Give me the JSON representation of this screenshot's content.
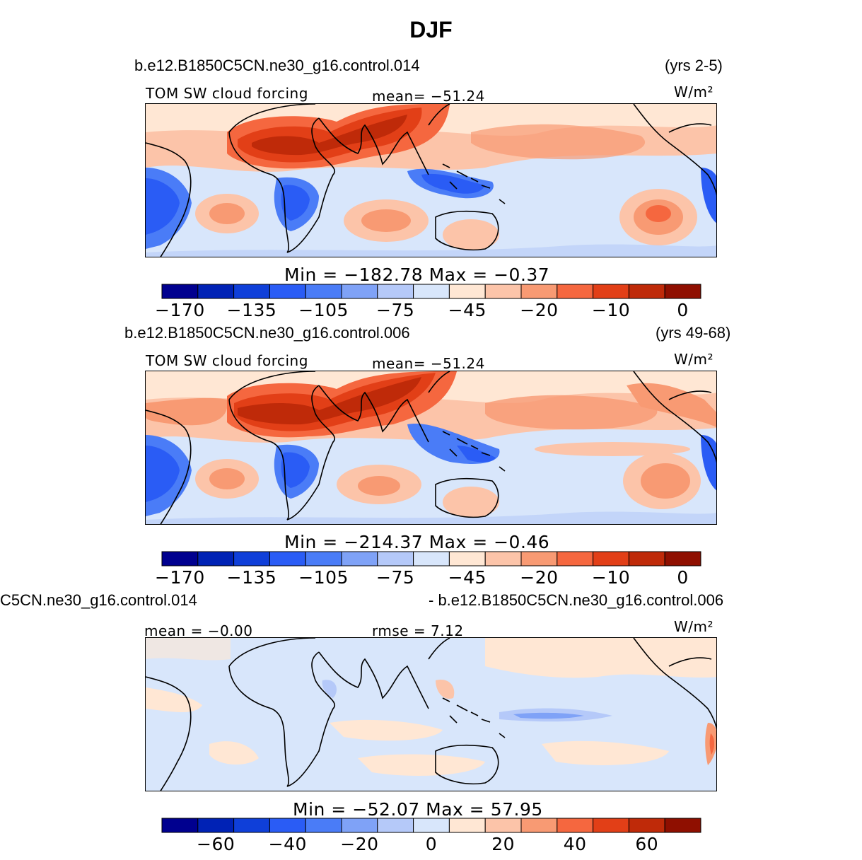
{
  "figure": {
    "title": "DJF"
  },
  "panels": [
    {
      "case_name": "b.e12.B1850C5CN.ne30_g16.control.014",
      "years": "(yrs 2-5)",
      "variable": "TOM  SW  cloud  forcing",
      "stat_text": "mean=  −51.24",
      "units": "W/m²",
      "minmax": "Min  =  −182.78  Max  =    −0.37",
      "colorbar_ticks": [
        "−170",
        "−135",
        "−105",
        "−75",
        "−45",
        "−20",
        "−10",
        "0"
      ],
      "colorbar_colors": [
        "#00008f",
        "#0022b5",
        "#0f3fd9",
        "#2a5cf5",
        "#4a7cf7",
        "#7fa2f7",
        "#b5c9f9",
        "#d8e6fb",
        "#ffe7d4",
        "#fcc4a9",
        "#f89a73",
        "#f5673f",
        "#e23f17",
        "#bf2a09",
        "#8f0f00"
      ],
      "levels": [
        -170,
        -150,
        -135,
        -120,
        -105,
        -90,
        -75,
        -60,
        -45,
        -30,
        -20,
        -15,
        -10,
        -5,
        0
      ]
    },
    {
      "case_name": "b.e12.B1850C5CN.ne30_g16.control.006",
      "years": "(yrs 49-68)",
      "variable": "TOM  SW  cloud  forcing",
      "stat_text": "mean=  −51.24",
      "units": "W/m²",
      "minmax": "Min  =  −214.37  Max  =    −0.46",
      "colorbar_ticks": [
        "−170",
        "−135",
        "−105",
        "−75",
        "−45",
        "−20",
        "−10",
        "0"
      ],
      "colorbar_colors": [
        "#00008f",
        "#0022b5",
        "#0f3fd9",
        "#2a5cf5",
        "#4a7cf7",
        "#7fa2f7",
        "#b5c9f9",
        "#d8e6fb",
        "#ffe7d4",
        "#fcc4a9",
        "#f89a73",
        "#f5673f",
        "#e23f17",
        "#bf2a09",
        "#8f0f00"
      ]
    },
    {
      "case_name_left": "C5CN.ne30_g16.control.014",
      "case_name_right": "- b.e12.B1850C5CN.ne30_g16.control.006",
      "stat_text": "mean =    −0.00",
      "stat_text2": "rmse  =     7.12",
      "units": "W/m²",
      "minmax": "Min  =  −52.07  Max  =    57.95",
      "colorbar_ticks": [
        "−60",
        "−40",
        "−20",
        "0",
        "20",
        "40",
        "60"
      ],
      "colorbar_colors": [
        "#00008f",
        "#0022b5",
        "#0f3fd9",
        "#2a5cf5",
        "#4a7cf7",
        "#7fa2f7",
        "#b5c9f9",
        "#d8e6fb",
        "#ffe7d4",
        "#fcc4a9",
        "#f89a73",
        "#f5673f",
        "#e23f17",
        "#bf2a09",
        "#8f0f00"
      ]
    }
  ]
}
